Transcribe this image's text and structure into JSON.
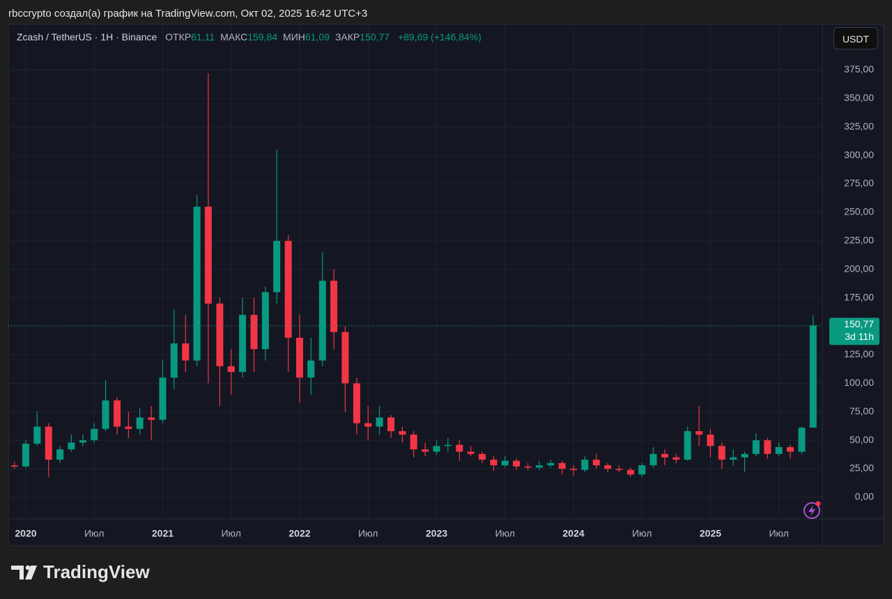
{
  "attribution": "rbccrypto создал(а) график на TradingView.com, Окт 02, 2025 16:42 UTC+3",
  "chart_data": {
    "type": "candlestick",
    "legend": {
      "symbol": "Zcash / TetherUS · 1H · Binance",
      "fields": [
        {
          "name": "ОТКР",
          "value": "61,11"
        },
        {
          "name": "МАКС",
          "value": "159,84"
        },
        {
          "name": "МИН",
          "value": "61,09"
        },
        {
          "name": "ЗАКР",
          "value": "150,77"
        }
      ],
      "change": "+89,69 (+146,84%)"
    },
    "currency": "USDT",
    "x": [
      2019.917,
      2020,
      2020.083,
      2020.167,
      2020.25,
      2020.333,
      2020.417,
      2020.5,
      2020.583,
      2020.667,
      2020.75,
      2020.833,
      2020.917,
      2021,
      2021.083,
      2021.167,
      2021.25,
      2021.333,
      2021.417,
      2021.5,
      2021.583,
      2021.667,
      2021.75,
      2021.833,
      2021.917,
      2022,
      2022.083,
      2022.167,
      2022.25,
      2022.333,
      2022.417,
      2022.5,
      2022.583,
      2022.667,
      2022.75,
      2022.833,
      2022.917,
      2023,
      2023.083,
      2023.167,
      2023.25,
      2023.333,
      2023.417,
      2023.5,
      2023.583,
      2023.667,
      2023.75,
      2023.833,
      2023.917,
      2024,
      2024.083,
      2024.167,
      2024.25,
      2024.333,
      2024.417,
      2024.5,
      2024.583,
      2024.667,
      2024.75,
      2024.833,
      2024.917,
      2025,
      2025.083,
      2025.167,
      2025.25,
      2025.333,
      2025.417,
      2025.5,
      2025.583,
      2025.667,
      2025.75
    ],
    "open": [
      28,
      27,
      47,
      62,
      33,
      42,
      48,
      50,
      60,
      85,
      62,
      60,
      70,
      68,
      105,
      135,
      120,
      255,
      170,
      115,
      110,
      160,
      130,
      180,
      225,
      140,
      105,
      120,
      190,
      145,
      100,
      65,
      62,
      70,
      58,
      55,
      42,
      40,
      45,
      46,
      40,
      38,
      33,
      28,
      32,
      27,
      26,
      28,
      30,
      25,
      24,
      33,
      28,
      25,
      24,
      20,
      28,
      38,
      35,
      33,
      58,
      55,
      45,
      33,
      35,
      38,
      50,
      38,
      44,
      40,
      61.11
    ],
    "high": [
      31,
      50,
      75,
      65,
      45,
      55,
      55,
      65,
      103,
      88,
      75,
      78,
      80,
      120,
      165,
      160,
      265,
      372,
      175,
      130,
      175,
      175,
      185,
      305,
      230,
      160,
      140,
      215,
      200,
      150,
      105,
      80,
      80,
      72,
      62,
      58,
      48,
      50,
      52,
      50,
      45,
      40,
      36,
      36,
      34,
      30,
      32,
      33,
      32,
      28,
      36,
      38,
      30,
      28,
      26,
      30,
      44,
      42,
      38,
      62,
      80,
      60,
      48,
      42,
      40,
      56,
      52,
      48,
      46,
      62,
      159.84
    ],
    "low": [
      25,
      26,
      45,
      18,
      30,
      40,
      45,
      48,
      58,
      55,
      52,
      55,
      50,
      65,
      95,
      110,
      115,
      100,
      80,
      90,
      105,
      110,
      120,
      170,
      110,
      83,
      90,
      115,
      130,
      75,
      55,
      50,
      55,
      52,
      48,
      35,
      36,
      37,
      40,
      32,
      36,
      30,
      23,
      26,
      24,
      24,
      24,
      26,
      20,
      19,
      22,
      25,
      22,
      22,
      18,
      18,
      26,
      28,
      30,
      32,
      45,
      35,
      25,
      28,
      22,
      36,
      34,
      36,
      34,
      38,
      61.09
    ],
    "close": [
      27,
      47,
      62,
      33,
      42,
      48,
      50,
      60,
      85,
      62,
      60,
      70,
      68,
      105,
      135,
      120,
      255,
      170,
      115,
      110,
      160,
      130,
      180,
      225,
      140,
      105,
      120,
      190,
      145,
      100,
      65,
      62,
      70,
      58,
      55,
      42,
      40,
      45,
      46,
      40,
      38,
      33,
      28,
      32,
      27,
      26,
      28,
      30,
      25,
      24,
      33,
      28,
      25,
      24,
      20,
      28,
      38,
      35,
      33,
      58,
      55,
      45,
      33,
      35,
      38,
      50,
      38,
      44,
      40,
      61,
      150.77
    ],
    "up_color": "#089981",
    "down_color": "#f23645",
    "xlim": [
      2019.873,
      2025.817
    ],
    "xticks": [
      {
        "value": 2020,
        "label": "2020"
      },
      {
        "value": 2020.5,
        "label": "Июл"
      },
      {
        "value": 2021,
        "label": "2021"
      },
      {
        "value": 2021.5,
        "label": "Июл"
      },
      {
        "value": 2022,
        "label": "2022"
      },
      {
        "value": 2022.5,
        "label": "Июл"
      },
      {
        "value": 2023,
        "label": "2023"
      },
      {
        "value": 2023.5,
        "label": "Июл"
      },
      {
        "value": 2024,
        "label": "2024"
      },
      {
        "value": 2024.5,
        "label": "Июл"
      },
      {
        "value": 2025,
        "label": "2025"
      },
      {
        "value": 2025.5,
        "label": "Июл"
      }
    ],
    "ylim": [
      -19,
      415
    ],
    "yticks": [
      {
        "value": 0,
        "label": "0,00"
      },
      {
        "value": 25,
        "label": "25,00"
      },
      {
        "value": 50,
        "label": "50,00"
      },
      {
        "value": 75,
        "label": "75,00"
      },
      {
        "value": 100,
        "label": "100,00"
      },
      {
        "value": 125,
        "label": "125,00"
      },
      {
        "value": 150,
        "label": "150,00"
      },
      {
        "value": 175,
        "label": "175,00"
      },
      {
        "value": 200,
        "label": "200,00"
      },
      {
        "value": 225,
        "label": "225,00"
      },
      {
        "value": 250,
        "label": "250,00"
      },
      {
        "value": 275,
        "label": "275,00"
      },
      {
        "value": 300,
        "label": "300,00"
      },
      {
        "value": 325,
        "label": "325,00"
      },
      {
        "value": 350,
        "label": "350,00"
      },
      {
        "value": 375,
        "label": "375,00"
      }
    ],
    "grid": true,
    "last_price": {
      "value": 150.77,
      "label": "150,77",
      "countdown": "3d 11h"
    }
  },
  "footer": "TradingView"
}
